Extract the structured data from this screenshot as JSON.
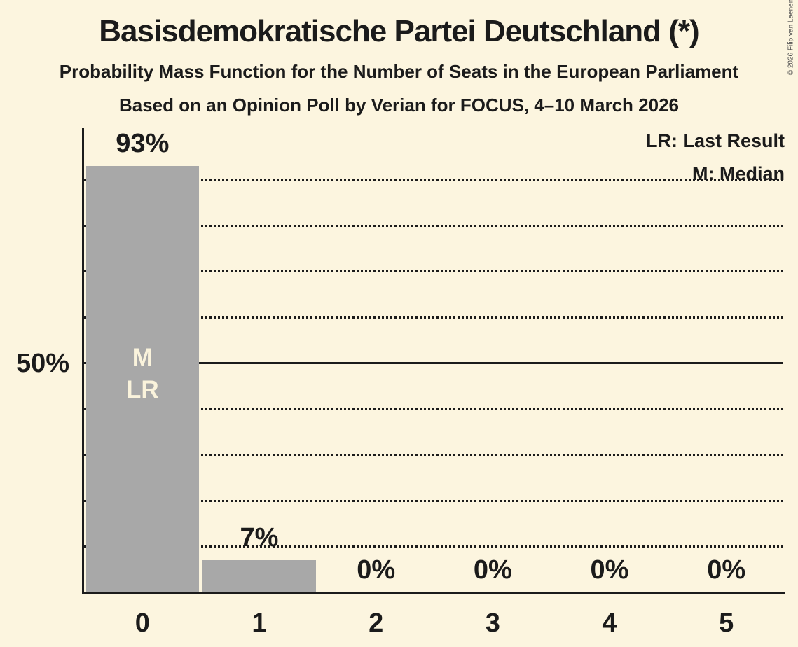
{
  "colors": {
    "background": "#FCF5DF",
    "bar": "#A8A8A8",
    "ink": "#1B1B1B",
    "bar_marker_text": "#FAF3DC",
    "copyright_text": "#4D4D4D"
  },
  "header": {
    "title": "Basisdemokratische Partei Deutschland (*)",
    "subtitle1": "Probability Mass Function for the Number of Seats in the European Parliament",
    "subtitle2": "Based on an Opinion Poll by Verian for FOCUS, 4–10 March 2026"
  },
  "legend": {
    "items": [
      "LR: Last Result",
      "M: Median"
    ]
  },
  "copyright": "© 2026 Filip van Laenen",
  "chart_data": {
    "type": "bar",
    "title": "Basisdemokratische Partei Deutschland (*) — Probability Mass Function for the Number of Seats in the European Parliament",
    "categories": [
      "0",
      "1",
      "2",
      "3",
      "4",
      "5"
    ],
    "values": [
      93,
      7,
      0,
      0,
      0,
      0
    ],
    "value_labels": [
      "93%",
      "7%",
      "0%",
      "0%",
      "0%",
      "0%"
    ],
    "xlabel": "",
    "ylabel": "",
    "ylim": [
      0,
      100
    ],
    "y_axis": {
      "tick_label": "50%",
      "tick_value": 50,
      "solid_line_value": 50,
      "dotted_gridlines": [
        10,
        20,
        30,
        40,
        60,
        70,
        80,
        90
      ]
    },
    "grid": "horizontal-dotted",
    "legend_position": "top-right",
    "bar_markers": {
      "bar_index": 0,
      "lines": [
        "M",
        "LR"
      ]
    }
  }
}
